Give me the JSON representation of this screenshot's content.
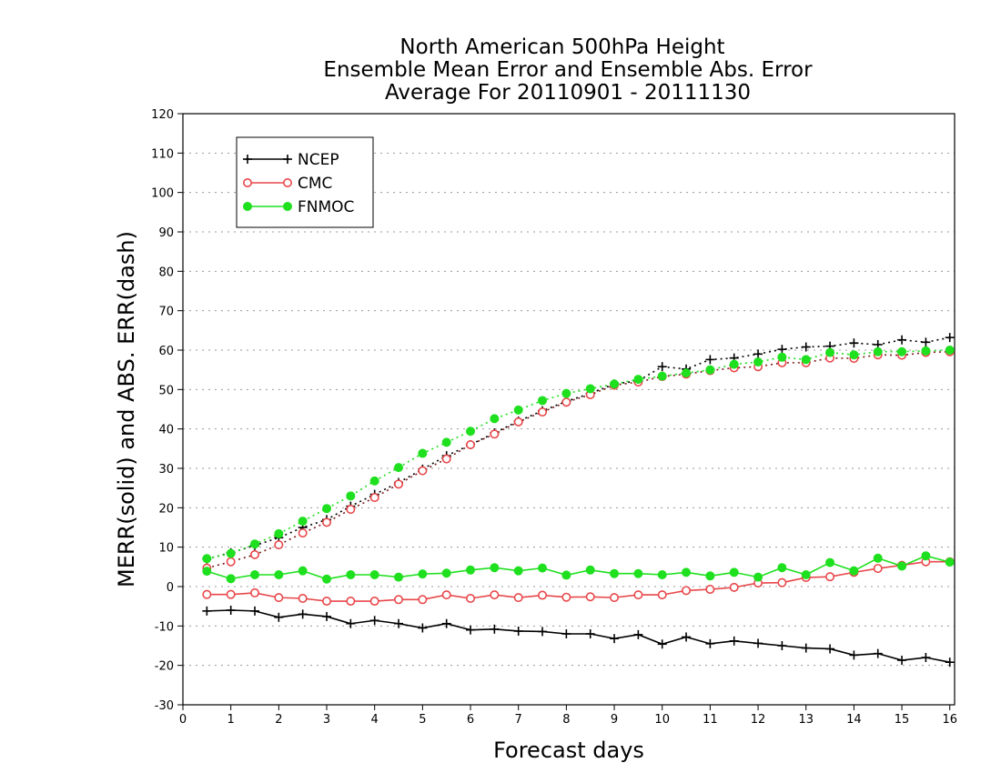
{
  "chart_data": {
    "type": "line",
    "title": [
      "North American 500hPa Height",
      "Ensemble Mean Error and Ensemble Abs. Error",
      "Average For 20110901 - 20111130"
    ],
    "xlabel": "Forecast days",
    "ylabel": "MERR(solid) and ABS. ERR(dash)",
    "xlim": [
      0,
      16.1
    ],
    "ylim": [
      -30,
      120
    ],
    "xticks": [
      0,
      1,
      2,
      3,
      4,
      5,
      6,
      7,
      8,
      9,
      10,
      11,
      12,
      13,
      14,
      15,
      16
    ],
    "yticks": [
      -30,
      -20,
      -10,
      0,
      10,
      20,
      30,
      40,
      50,
      60,
      70,
      80,
      90,
      100,
      110,
      120
    ],
    "grid": "horizontal dotted",
    "legend_position": "top-left",
    "x": [
      0.5,
      1,
      1.5,
      2,
      2.5,
      3,
      3.5,
      4,
      4.5,
      5,
      5.5,
      6,
      6.5,
      7,
      7.5,
      8,
      8.5,
      9,
      9.5,
      10,
      10.5,
      11,
      11.5,
      12,
      12.5,
      13,
      13.5,
      14,
      14.5,
      15,
      15.5,
      16
    ],
    "series": [
      {
        "name": "NCEP",
        "color": "#000000",
        "marker": "plus",
        "merr": [
          -6.2,
          -6.0,
          -6.2,
          -7.8,
          -7.0,
          -7.6,
          -9.4,
          -8.6,
          -9.4,
          -10.5,
          -9.4,
          -11.0,
          -10.8,
          -11.3,
          -11.4,
          -12.0,
          -12.0,
          -13.2,
          -12.2,
          -14.6,
          -12.8,
          -14.5,
          -13.8,
          -14.4,
          -15.0,
          -15.6,
          -15.8,
          -17.4,
          -17.0,
          -18.7,
          -18.0,
          -19.2
        ],
        "abs_err": [
          7.0,
          8.6,
          10.4,
          12.4,
          15.0,
          17.0,
          20.4,
          23.4,
          26.4,
          29.8,
          33.2,
          36.0,
          39.0,
          42.0,
          44.6,
          47.0,
          49.0,
          51.4,
          52.2,
          55.8,
          55.2,
          57.6,
          58.0,
          59.0,
          60.2,
          60.8,
          61.0,
          61.8,
          61.4,
          62.6,
          62.0,
          63.2
        ]
      },
      {
        "name": "CMC",
        "color": "#e8474a",
        "marker": "open-circle",
        "merr": [
          -2.0,
          -2.0,
          -1.6,
          -2.8,
          -3.0,
          -3.7,
          -3.7,
          -3.7,
          -3.3,
          -3.3,
          -2.1,
          -3.0,
          -2.1,
          -2.8,
          -2.2,
          -2.7,
          -2.6,
          -2.8,
          -2.1,
          -2.1,
          -1.0,
          -0.7,
          -0.2,
          0.9,
          1.0,
          2.3,
          2.5,
          3.6,
          4.6,
          5.4,
          6.3,
          6.3
        ],
        "abs_err": [
          4.7,
          6.3,
          8.1,
          10.6,
          13.6,
          16.3,
          19.6,
          22.6,
          26.0,
          29.4,
          32.4,
          36.0,
          38.7,
          41.8,
          44.3,
          46.8,
          48.7,
          51.1,
          51.9,
          53.3,
          53.9,
          54.8,
          55.5,
          55.8,
          56.8,
          56.8,
          58.0,
          57.9,
          58.8,
          58.7,
          59.4,
          59.6
        ]
      },
      {
        "name": "FNMOC",
        "color": "#1ee01e",
        "marker": "filled-circle",
        "merr": [
          3.9,
          2.0,
          3.0,
          3.0,
          4.0,
          1.9,
          3.0,
          3.0,
          2.4,
          3.2,
          3.4,
          4.2,
          4.8,
          4.0,
          4.7,
          2.9,
          4.2,
          3.3,
          3.3,
          3.0,
          3.6,
          2.7,
          3.6,
          2.4,
          4.8,
          3.0,
          6.1,
          4.0,
          7.2,
          5.2,
          7.8,
          6.2
        ],
        "abs_err": [
          7.1,
          8.4,
          10.8,
          13.4,
          16.6,
          19.8,
          23.0,
          26.8,
          30.2,
          33.8,
          36.6,
          39.4,
          42.6,
          44.8,
          47.2,
          49.0,
          50.2,
          51.4,
          52.6,
          53.4,
          54.2,
          55.0,
          56.4,
          57.0,
          58.2,
          57.6,
          59.4,
          58.8,
          59.6,
          59.6,
          59.8,
          60.0
        ]
      }
    ]
  }
}
